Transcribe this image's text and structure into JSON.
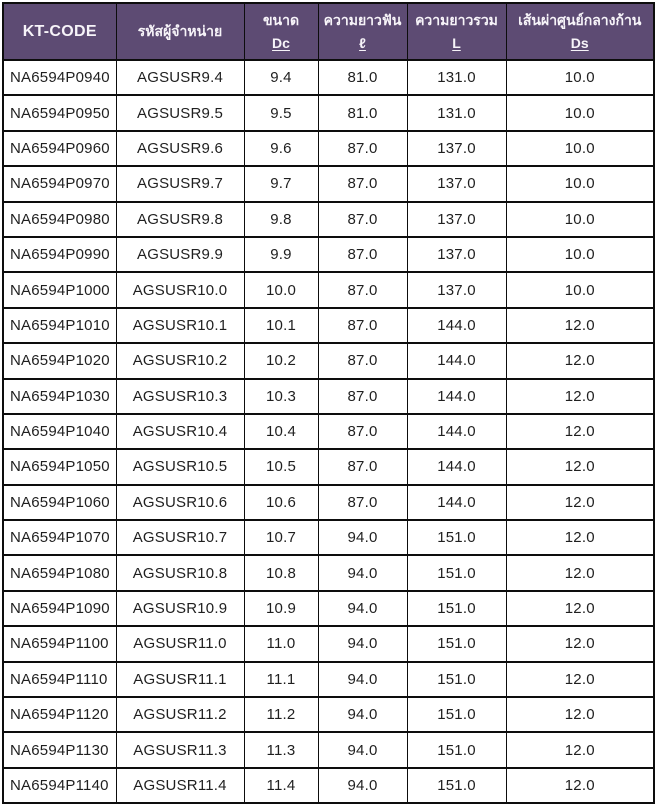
{
  "colors": {
    "header_bg": "#5d4b73",
    "header_text": "#f7f4f9",
    "border": "#0d0d0d",
    "body_text": "#1f1f1f"
  },
  "table": {
    "columns": [
      {
        "id": "kt_code",
        "title": "KT-CODE",
        "symbol": ""
      },
      {
        "id": "vendor_code",
        "title": "รหัสผู้จำหน่าย",
        "symbol": ""
      },
      {
        "id": "size",
        "title": "ขนาด",
        "symbol": "Dc"
      },
      {
        "id": "flute_length",
        "title": "ความยาวฟัน",
        "symbol": "ℓ"
      },
      {
        "id": "overall_length",
        "title": "ความยาวรวม",
        "symbol": "L"
      },
      {
        "id": "shank_diameter",
        "title": "เส้นผ่าศูนย์กลางก้าน",
        "symbol": "Ds"
      }
    ],
    "rows": [
      [
        "NA6594P0940",
        "AGSUSR9.4",
        "9.4",
        "81.0",
        "131.0",
        "10.0"
      ],
      [
        "NA6594P0950",
        "AGSUSR9.5",
        "9.5",
        "81.0",
        "131.0",
        "10.0"
      ],
      [
        "NA6594P0960",
        "AGSUSR9.6",
        "9.6",
        "87.0",
        "137.0",
        "10.0"
      ],
      [
        "NA6594P0970",
        "AGSUSR9.7",
        "9.7",
        "87.0",
        "137.0",
        "10.0"
      ],
      [
        "NA6594P0980",
        "AGSUSR9.8",
        "9.8",
        "87.0",
        "137.0",
        "10.0"
      ],
      [
        "NA6594P0990",
        "AGSUSR9.9",
        "9.9",
        "87.0",
        "137.0",
        "10.0"
      ],
      [
        "NA6594P1000",
        "AGSUSR10.0",
        "10.0",
        "87.0",
        "137.0",
        "10.0"
      ],
      [
        "NA6594P1010",
        "AGSUSR10.1",
        "10.1",
        "87.0",
        "144.0",
        "12.0"
      ],
      [
        "NA6594P1020",
        "AGSUSR10.2",
        "10.2",
        "87.0",
        "144.0",
        "12.0"
      ],
      [
        "NA6594P1030",
        "AGSUSR10.3",
        "10.3",
        "87.0",
        "144.0",
        "12.0"
      ],
      [
        "NA6594P1040",
        "AGSUSR10.4",
        "10.4",
        "87.0",
        "144.0",
        "12.0"
      ],
      [
        "NA6594P1050",
        "AGSUSR10.5",
        "10.5",
        "87.0",
        "144.0",
        "12.0"
      ],
      [
        "NA6594P1060",
        "AGSUSR10.6",
        "10.6",
        "87.0",
        "144.0",
        "12.0"
      ],
      [
        "NA6594P1070",
        "AGSUSR10.7",
        "10.7",
        "94.0",
        "151.0",
        "12.0"
      ],
      [
        "NA6594P1080",
        "AGSUSR10.8",
        "10.8",
        "94.0",
        "151.0",
        "12.0"
      ],
      [
        "NA6594P1090",
        "AGSUSR10.9",
        "10.9",
        "94.0",
        "151.0",
        "12.0"
      ],
      [
        "NA6594P1100",
        "AGSUSR11.0",
        "11.0",
        "94.0",
        "151.0",
        "12.0"
      ],
      [
        "NA6594P1110",
        "AGSUSR11.1",
        "11.1",
        "94.0",
        "151.0",
        "12.0"
      ],
      [
        "NA6594P1120",
        "AGSUSR11.2",
        "11.2",
        "94.0",
        "151.0",
        "12.0"
      ],
      [
        "NA6594P1130",
        "AGSUSR11.3",
        "11.3",
        "94.0",
        "151.0",
        "12.0"
      ],
      [
        "NA6594P1140",
        "AGSUSR11.4",
        "11.4",
        "94.0",
        "151.0",
        "12.0"
      ]
    ]
  }
}
